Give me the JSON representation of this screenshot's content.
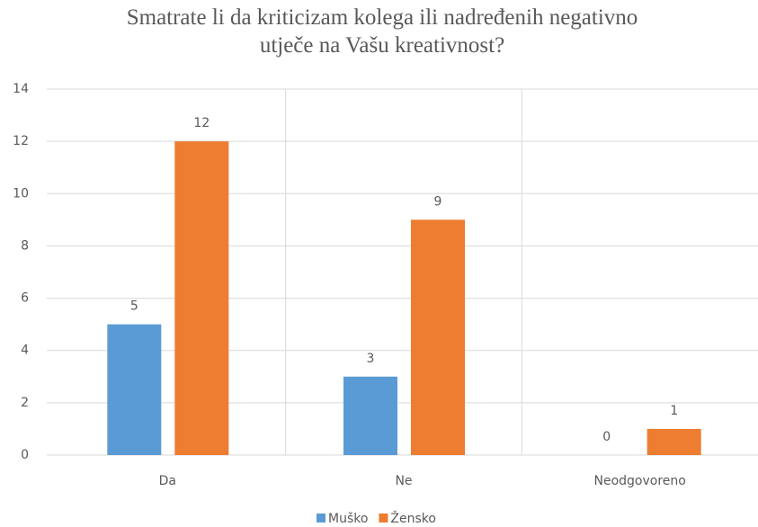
{
  "chart_data": {
    "type": "bar",
    "title": "Smatrate li da kriticizam kolega ili nadređenih negativno utječe na Vašu kreativnost?",
    "categories": [
      "Da",
      "Ne",
      "Neodgovoreno"
    ],
    "series": [
      {
        "name": "Muško",
        "color": "#5b9bd5",
        "values": [
          5,
          3,
          0
        ]
      },
      {
        "name": "Žensko",
        "color": "#ed7d31",
        "values": [
          12,
          9,
          1
        ]
      }
    ],
    "ylim": [
      0,
      14
    ],
    "yticks": [
      0,
      2,
      4,
      6,
      8,
      10,
      12,
      14
    ],
    "grid": true,
    "legend": "bottom"
  }
}
